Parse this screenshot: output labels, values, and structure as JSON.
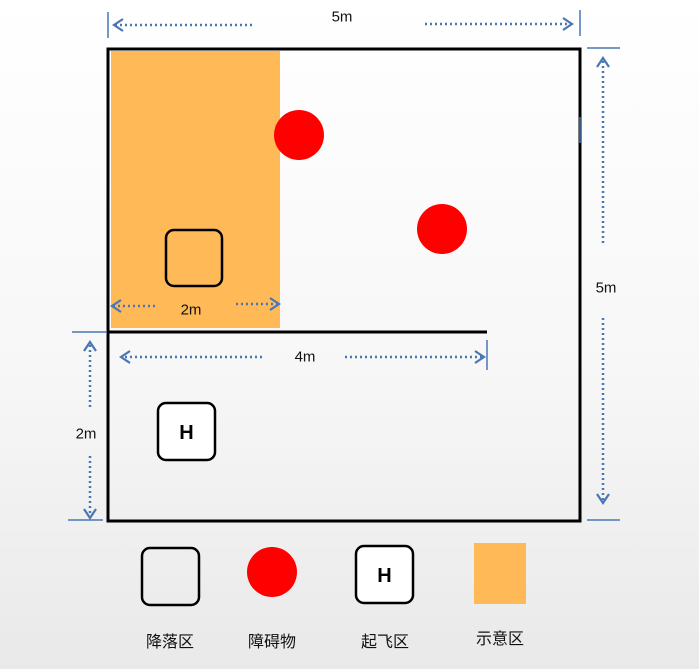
{
  "dimensions": {
    "outer_width": "5m",
    "outer_height": "5m",
    "orange_zone_width": "2m",
    "divider_length": "4m",
    "takeoff_zone_height": "2m"
  },
  "pad_letter": "H",
  "legend": [
    {
      "key": "landing",
      "icon": "empty-square",
      "label": "降落区"
    },
    {
      "key": "obstacle",
      "icon": "red-circle",
      "label": "障碍物"
    },
    {
      "key": "takeoff",
      "icon": "h-square",
      "label": "起飞区"
    },
    {
      "key": "zone",
      "icon": "orange-square",
      "label": "示意区"
    }
  ],
  "colors": {
    "frame": "#000000",
    "arrow": "#4a76b2",
    "obstacle": "#ff0000",
    "zone": "#ffb957"
  }
}
